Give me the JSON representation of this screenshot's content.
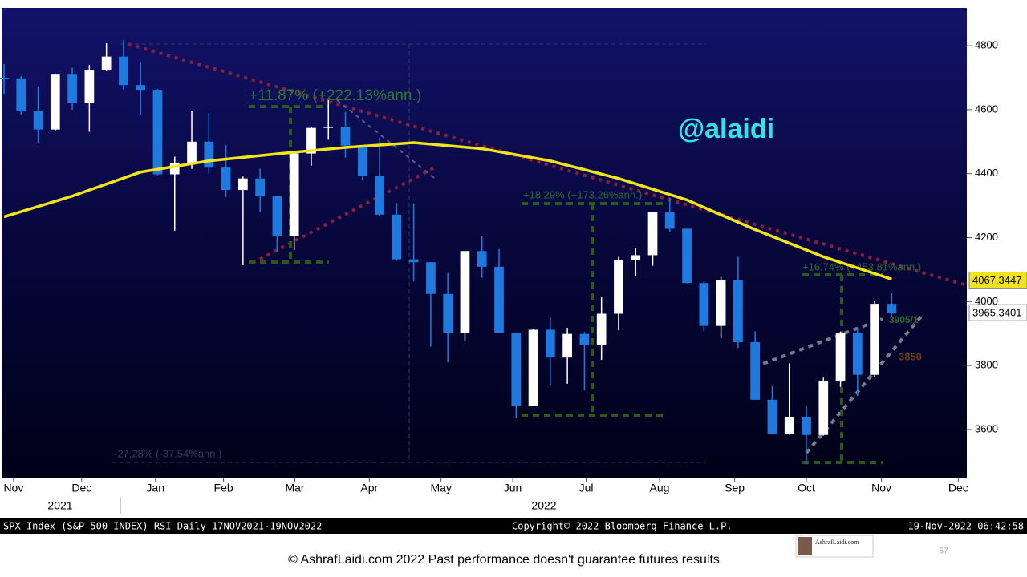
{
  "chart_data": {
    "type": "candlestick",
    "watermark": "@alaidi",
    "ylim": [
      3447,
      4918
    ],
    "yticks": [
      3600,
      3800,
      4000,
      4200,
      4400,
      4600,
      4800
    ],
    "xlim": [
      -0.14,
      56.4
    ],
    "xticks": [
      {
        "value": 0.56,
        "label": "Nov"
      },
      {
        "value": 4.55,
        "label": "Dec"
      },
      {
        "value": 8.87,
        "label": "Jan"
      },
      {
        "value": 12.86,
        "label": "Feb"
      },
      {
        "value": 17.04,
        "label": "Mar"
      },
      {
        "value": 21.4,
        "label": "Apr"
      },
      {
        "value": 25.6,
        "label": "May"
      },
      {
        "value": 29.8,
        "label": "Jun"
      },
      {
        "value": 34.1,
        "label": "Jul"
      },
      {
        "value": 38.4,
        "label": "Aug"
      },
      {
        "value": 42.8,
        "label": "Sep"
      },
      {
        "value": 47.0,
        "label": "Oct"
      },
      {
        "value": 51.4,
        "label": "Nov"
      },
      {
        "value": 55.9,
        "label": "Dec"
      }
    ],
    "year_labels": [
      "2021",
      "2022"
    ],
    "up_color": "#ffffff",
    "down_color": "#1f7ae0",
    "open": [
      4700,
      4698,
      4595,
      4538,
      4712,
      4620,
      4725,
      4766,
      4677,
      4662,
      4398,
      4432,
      4500,
      4419,
      4349,
      4385,
      4329,
      4204,
      4463,
      4543,
      4546,
      4488,
      4393,
      4272,
      4132,
      4123,
      4024,
      3901,
      4158,
      4109,
      3901,
      3675,
      3912,
      3825,
      3899,
      3863,
      3962,
      4130,
      4145,
      4280,
      4228,
      4058,
      3924,
      4067,
      3873,
      3693,
      3586,
      3640,
      3583,
      3752,
      3901,
      3771,
      3993
    ],
    "high": [
      4743,
      4705,
      4672,
      4713,
      4731,
      4740,
      4808,
      4818,
      4749,
      4665,
      4453,
      4595,
      4590,
      4490,
      4391,
      4416,
      4329,
      4465,
      4546,
      4637,
      4593,
      4488,
      4513,
      4308,
      4307,
      4123,
      4090,
      4158,
      4204,
      4164,
      3901,
      3913,
      3950,
      3918,
      3905,
      4013,
      4140,
      4167,
      4281,
      4325,
      4228,
      4062,
      4077,
      4140,
      3907,
      3736,
      3807,
      3674,
      3762,
      3906,
      3919,
      4003,
      4028
    ],
    "low": [
      4650,
      4585,
      4495,
      4532,
      4600,
      4531,
      4720,
      4663,
      4582,
      4395,
      4222,
      4415,
      4401,
      4327,
      4114,
      4279,
      4157,
      4161,
      4425,
      4506,
      4450,
      4381,
      4267,
      4128,
      4063,
      3859,
      3810,
      3875,
      4074,
      3901,
      3637,
      3675,
      3739,
      3743,
      3722,
      3818,
      3910,
      4080,
      4112,
      4218,
      4057,
      3907,
      3886,
      3855,
      3693,
      3585,
      3584,
      3491,
      3581,
      3733,
      3705,
      3764,
      3953
    ],
    "close": [
      4698,
      4595,
      4538,
      4712,
      4620,
      4725,
      4766,
      4677,
      4662,
      4398,
      4432,
      4500,
      4419,
      4349,
      4385,
      4329,
      4204,
      4463,
      4543,
      4546,
      4488,
      4393,
      4272,
      4132,
      4123,
      4024,
      3901,
      4158,
      4109,
      3901,
      3675,
      3912,
      3825,
      3899,
      3863,
      3962,
      4130,
      4145,
      4280,
      4228,
      4058,
      3924,
      4067,
      3873,
      3693,
      3586,
      3640,
      3583,
      3752,
      3901,
      3771,
      3993,
      3965
    ],
    "moving_average": {
      "color": "#f2e41c",
      "x": [
        0,
        4,
        8,
        12,
        16,
        20,
        24,
        28,
        32,
        36,
        40,
        44,
        48,
        52
      ],
      "values": [
        4265,
        4330,
        4405,
        4440,
        4462,
        4482,
        4497,
        4478,
        4440,
        4385,
        4318,
        4225,
        4140,
        4070
      ]
    },
    "last_labels": [
      {
        "value": 4067.3447,
        "color": "#f2e41c"
      },
      {
        "value": 3965.3401,
        "color": "#ffffff"
      }
    ],
    "annotations": [
      "+11.87% (+222.13%ann.)",
      "+18.29% (+173.26%ann.)",
      "+16.74% (+453.81%ann.)",
      "-27.28% (-37.54%ann.)",
      "3905/1",
      "3850"
    ],
    "footer_left": "SPX Index (S&P 500 INDEX) RSI  Daily 17NOV2021-19NOV2022",
    "footer_center": "Copyright© 2022 Bloomberg Finance L.P.",
    "footer_right": "19-Nov-2022 06:42:58"
  },
  "slide": {
    "disclaimer": "© AshrafLaidi.com 2022 Past performance doesn't guarantee futures results",
    "page_number": "57",
    "logo": "AshrafLaidi.com"
  }
}
